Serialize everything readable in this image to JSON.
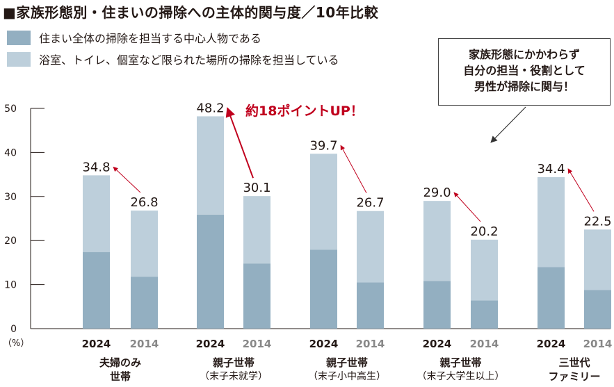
{
  "title": "■家族形態別・住まいの掃除への主体的関与度／10年比較",
  "colors": {
    "primary": "#93afc1",
    "secondary": "#bdcfdb",
    "arrow_red": "#c0001d",
    "highlight_text": "#c0001d",
    "year_2024": "#231815",
    "year_2014": "#888888"
  },
  "legend": [
    {
      "label": "住まい全体の掃除を担当する中心人物である",
      "color": "#93afc1"
    },
    {
      "label": "浴室、トイレ、個室など限られた場所の掃除を担当している",
      "color": "#bdcfdb"
    }
  ],
  "callout": {
    "lines": [
      "家族形態にかかわらず",
      "自分の担当・役割として",
      "男性が掃除に関与！"
    ]
  },
  "highlight": "約18ポイントUP！",
  "chart_data": {
    "type": "bar",
    "stacked": true,
    "ylabel": "（%）",
    "ylim": [
      0,
      50
    ],
    "yticks": [
      0,
      10,
      20,
      30,
      40,
      50
    ],
    "groups": [
      {
        "lines": [
          "夫婦のみ",
          "世帯"
        ],
        "sub": false
      },
      {
        "lines": [
          "親子世帯",
          "（末子未就学）"
        ],
        "sub": true
      },
      {
        "lines": [
          "親子世帯",
          "（末子小中高生）"
        ],
        "sub": true
      },
      {
        "lines": [
          "親子世帯",
          "（末子大学生以上）"
        ],
        "sub": true
      },
      {
        "lines": [
          "三世代",
          "ファミリー"
        ],
        "sub": false
      }
    ],
    "years": [
      "2024",
      "2014"
    ],
    "series": [
      {
        "name": "住まい全体の掃除を担当する中心人物である",
        "values_2024": [
          17.4,
          25.9,
          17.9,
          10.8,
          14.0
        ],
        "values_2014": [
          11.8,
          14.8,
          10.5,
          6.4,
          8.8
        ]
      },
      {
        "name": "浴室、トイレ、個室など限られた場所の掃除を担当している",
        "values_2024": [
          17.4,
          22.3,
          21.8,
          18.2,
          20.4
        ],
        "values_2014": [
          15.0,
          15.3,
          16.2,
          13.8,
          13.7
        ]
      }
    ],
    "totals_2024": [
      "34.8",
      "48.2",
      "39.7",
      "29.0",
      "34.4"
    ],
    "totals_2014": [
      "26.8",
      "30.1",
      "26.7",
      "20.2",
      "22.5"
    ]
  }
}
